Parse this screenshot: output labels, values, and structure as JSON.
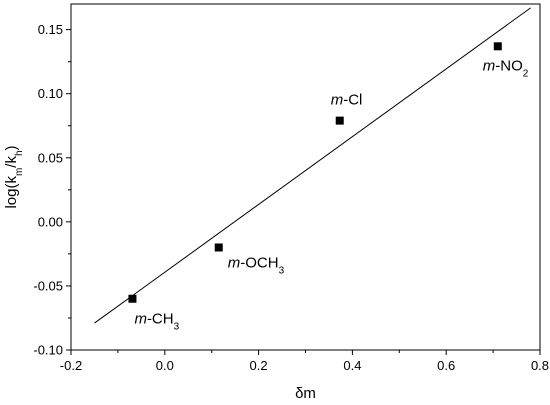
{
  "chart_data": {
    "type": "scatter",
    "title": "",
    "xlabel": "δm",
    "ylabel": {
      "main": "log(k",
      "sub1": "m",
      "mid": "/k",
      "sub2": "h",
      "end": ")"
    },
    "xlim": [
      -0.2,
      0.8
    ],
    "ylim": [
      -0.1,
      0.17
    ],
    "xticks": [
      -0.2,
      0.0,
      0.2,
      0.4,
      0.6,
      0.8
    ],
    "xtick_labels": [
      "-0.2",
      "0.0",
      "0.2",
      "0.4",
      "0.6",
      "0.8"
    ],
    "yticks": [
      -0.1,
      -0.05,
      0.0,
      0.05,
      0.1,
      0.15
    ],
    "ytick_labels": [
      "-0.10",
      "-0.05",
      "0.00",
      "0.05",
      "0.10",
      "0.15"
    ],
    "grid": false,
    "legend": "none",
    "marker": "square",
    "marker_color": "#000000",
    "points": [
      {
        "x": -0.069,
        "y": -0.06,
        "label": {
          "italic": "m",
          "text": "-CH",
          "sub": "3"
        }
      },
      {
        "x": 0.115,
        "y": -0.02,
        "label": {
          "italic": "m",
          "text": "-OCH",
          "sub": "3"
        }
      },
      {
        "x": 0.373,
        "y": 0.079,
        "label": {
          "italic": "m",
          "text": "-Cl",
          "sub": ""
        }
      },
      {
        "x": 0.71,
        "y": 0.137,
        "label": {
          "italic": "m",
          "text": "-NO",
          "sub": "2"
        }
      }
    ],
    "fit_line": {
      "x": [
        -0.15,
        0.78
      ],
      "y": [
        -0.079,
        0.167
      ]
    }
  }
}
